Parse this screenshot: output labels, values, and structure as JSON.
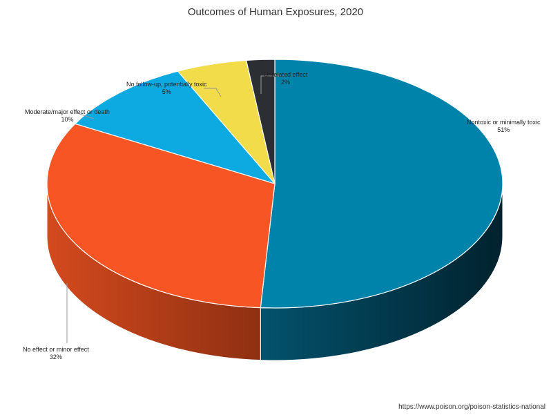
{
  "chart_data": {
    "type": "pie",
    "title": "Outcomes of Human Exposures, 2020",
    "slices": [
      {
        "label": "Nontoxic or minimally toxic",
        "value": 51,
        "value_label": "51%",
        "color": "#0083AB",
        "side_color": "#034B63"
      },
      {
        "label": "No effect or minor effect",
        "value": 32,
        "value_label": "32%",
        "color": "#F75523",
        "side_color": "#B13C17"
      },
      {
        "label": "Moderate/major effect or death",
        "value": 10,
        "value_label": "10%",
        "color": "#0DA9E1",
        "side_color": "#087AA3"
      },
      {
        "label": "No follow-up, potentially toxic",
        "value": 5,
        "value_label": "5%",
        "color": "#F2DC49",
        "side_color": "#B3A236"
      },
      {
        "label": "Unrelated effect",
        "value": 2,
        "value_label": "2%",
        "color": "#2B2F33",
        "side_color": "#1A1C1F"
      }
    ]
  },
  "source": "https://www.poison.org/poison-statistics-national"
}
